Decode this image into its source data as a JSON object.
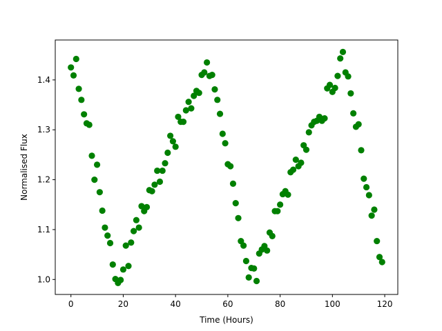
{
  "chart_data": {
    "type": "scatter",
    "title": "",
    "xlabel": "Time (Hours)",
    "ylabel": "Normalised Flux",
    "xlim": [
      -6,
      125
    ],
    "ylim": [
      0.97,
      1.48
    ],
    "xticks": [
      0,
      20,
      40,
      60,
      80,
      100,
      120
    ],
    "yticks": [
      1.0,
      1.1,
      1.2,
      1.3,
      1.4
    ],
    "ytick_labels": [
      "1.0",
      "1.1",
      "1.2",
      "1.3",
      "1.4"
    ],
    "grid": false,
    "marker_color": "#008000",
    "series": [
      {
        "x": [
          0,
          1,
          2,
          3,
          4,
          5,
          6,
          7,
          8,
          9,
          10,
          11,
          12,
          13,
          14,
          15,
          16,
          17,
          18,
          19,
          20,
          21,
          22,
          23,
          24,
          25,
          26,
          27,
          28,
          29,
          30,
          31,
          32,
          33,
          34,
          35,
          36,
          37,
          38,
          39,
          40,
          41,
          42,
          43,
          44,
          45,
          46,
          47,
          48,
          49,
          50,
          51,
          52,
          53,
          54,
          55,
          56,
          57,
          58,
          59,
          60,
          61,
          62,
          63,
          64,
          65,
          66,
          67,
          68,
          69,
          70,
          71,
          72,
          73,
          74,
          75,
          76,
          77,
          78,
          79,
          80,
          81,
          82,
          83,
          84,
          85,
          86,
          87,
          88,
          89,
          90,
          91,
          92,
          93,
          94,
          95,
          96,
          97,
          98,
          99,
          100,
          101,
          102,
          103,
          104,
          105,
          106,
          107,
          108,
          109,
          110,
          111,
          112,
          113,
          114,
          115,
          116,
          117,
          118,
          119
        ],
        "y": [
          1.425,
          1.409,
          1.442,
          1.382,
          1.36,
          1.331,
          1.313,
          1.31,
          1.248,
          1.2,
          1.23,
          1.175,
          1.138,
          1.104,
          1.088,
          1.073,
          1.03,
          1.001,
          0.993,
          0.999,
          1.02,
          1.068,
          1.027,
          1.074,
          1.097,
          1.119,
          1.104,
          1.147,
          1.137,
          1.145,
          1.179,
          1.177,
          1.19,
          1.218,
          1.196,
          1.218,
          1.233,
          1.254,
          1.288,
          1.277,
          1.266,
          1.326,
          1.316,
          1.316,
          1.339,
          1.356,
          1.343,
          1.368,
          1.378,
          1.374,
          1.41,
          1.415,
          1.435,
          1.408,
          1.41,
          1.381,
          1.36,
          1.332,
          1.292,
          1.273,
          1.231,
          1.227,
          1.192,
          1.153,
          1.123,
          1.077,
          1.068,
          1.037,
          1.004,
          1.023,
          1.022,
          0.997,
          1.052,
          1.06,
          1.067,
          1.058,
          1.094,
          1.087,
          1.137,
          1.137,
          1.15,
          1.171,
          1.177,
          1.17,
          1.215,
          1.22,
          1.24,
          1.227,
          1.234,
          1.269,
          1.26,
          1.295,
          1.309,
          1.316,
          1.318,
          1.326,
          1.318,
          1.323,
          1.383,
          1.39,
          1.376,
          1.384,
          1.408,
          1.443,
          1.456,
          1.415,
          1.407,
          1.373,
          1.333,
          1.306,
          1.311,
          1.259,
          1.202,
          1.185,
          1.169,
          1.128,
          1.14,
          1.077,
          1.045,
          1.035
        ]
      }
    ]
  }
}
